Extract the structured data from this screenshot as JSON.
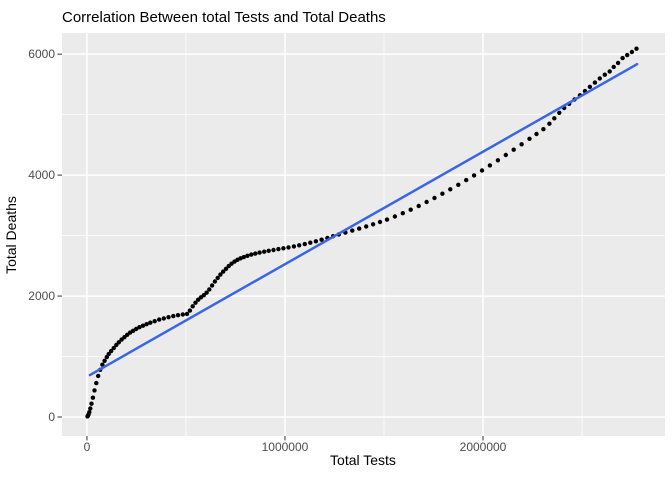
{
  "title": "Correlation Between total Tests and Total Deaths",
  "chart_data": {
    "type": "scatter",
    "title": "Correlation Between total Tests and Total Deaths",
    "xlabel": "Total Tests",
    "ylabel": "Total Deaths",
    "legend": "none",
    "grid": "on",
    "xlim": [
      -126000,
      2919000
    ],
    "ylim": [
      -314,
      6350
    ],
    "x_ticks": [
      0,
      1000000,
      2000000
    ],
    "x_tick_labels": [
      "0",
      "1000000",
      "2000000"
    ],
    "x_minor_ticks": [
      500000,
      1500000,
      2500000
    ],
    "y_ticks": [
      0,
      2000,
      4000,
      6000
    ],
    "y_tick_labels": [
      "0",
      "2000",
      "4000",
      "6000"
    ],
    "y_minor_ticks": [
      1000,
      3000,
      5000
    ],
    "colors": {
      "panel": "#EBEBEB",
      "grid": "#FFFFFF",
      "point": "#000000",
      "trend": "#3A66E5",
      "tick_label": "#4D4D4D",
      "tick_mark": "#333333",
      "text": "#000000",
      "background": "#FFFFFF"
    },
    "trend_line": {
      "type": "linear",
      "x1": 15000,
      "y1": 694,
      "x2": 2778000,
      "y2": 5835
    },
    "points": [
      [
        3000,
        10
      ],
      [
        5000,
        20
      ],
      [
        8000,
        40
      ],
      [
        12000,
        80
      ],
      [
        17000,
        140
      ],
      [
        23000,
        220
      ],
      [
        30000,
        320
      ],
      [
        38000,
        440
      ],
      [
        47000,
        560
      ],
      [
        57000,
        680
      ],
      [
        67000,
        780
      ],
      [
        78000,
        865
      ],
      [
        89000,
        930
      ],
      [
        100000,
        990
      ],
      [
        110000,
        1040
      ],
      [
        122000,
        1090
      ],
      [
        135000,
        1140
      ],
      [
        148000,
        1190
      ],
      [
        161000,
        1235
      ],
      [
        175000,
        1280
      ],
      [
        189000,
        1320
      ],
      [
        203000,
        1360
      ],
      [
        218000,
        1395
      ],
      [
        233000,
        1425
      ],
      [
        248000,
        1455
      ],
      [
        265000,
        1485
      ],
      [
        283000,
        1510
      ],
      [
        301000,
        1535
      ],
      [
        320000,
        1560
      ],
      [
        342000,
        1585
      ],
      [
        365000,
        1610
      ],
      [
        388000,
        1630
      ],
      [
        412000,
        1650
      ],
      [
        436000,
        1668
      ],
      [
        460000,
        1683
      ],
      [
        484000,
        1695
      ],
      [
        505000,
        1705
      ],
      [
        520000,
        1760
      ],
      [
        534000,
        1830
      ],
      [
        548000,
        1890
      ],
      [
        562000,
        1940
      ],
      [
        576000,
        1980
      ],
      [
        590000,
        2015
      ],
      [
        604000,
        2055
      ],
      [
        618000,
        2110
      ],
      [
        632000,
        2175
      ],
      [
        646000,
        2240
      ],
      [
        660000,
        2300
      ],
      [
        674000,
        2355
      ],
      [
        688000,
        2405
      ],
      [
        702000,
        2450
      ],
      [
        716000,
        2495
      ],
      [
        730000,
        2535
      ],
      [
        745000,
        2570
      ],
      [
        760000,
        2600
      ],
      [
        776000,
        2625
      ],
      [
        792000,
        2645
      ],
      [
        810000,
        2665
      ],
      [
        830000,
        2685
      ],
      [
        850000,
        2702
      ],
      [
        872000,
        2718
      ],
      [
        895000,
        2733
      ],
      [
        918000,
        2748
      ],
      [
        942000,
        2762
      ],
      [
        967000,
        2776
      ],
      [
        992000,
        2790
      ],
      [
        1018000,
        2805
      ],
      [
        1045000,
        2822
      ],
      [
        1072000,
        2840
      ],
      [
        1100000,
        2860
      ],
      [
        1128000,
        2882
      ],
      [
        1156000,
        2906
      ],
      [
        1185000,
        2932
      ],
      [
        1214000,
        2960
      ],
      [
        1243000,
        2990
      ],
      [
        1272000,
        3020
      ],
      [
        1305000,
        3050
      ],
      [
        1340000,
        3082
      ],
      [
        1375000,
        3115
      ],
      [
        1410000,
        3150
      ],
      [
        1445000,
        3186
      ],
      [
        1480000,
        3224
      ],
      [
        1515000,
        3264
      ],
      [
        1555000,
        3315
      ],
      [
        1595000,
        3370
      ],
      [
        1635000,
        3428
      ],
      [
        1675000,
        3490
      ],
      [
        1715000,
        3555
      ],
      [
        1755000,
        3622
      ],
      [
        1795000,
        3692
      ],
      [
        1835000,
        3765
      ],
      [
        1875000,
        3840
      ],
      [
        1915000,
        3917
      ],
      [
        1955000,
        3996
      ],
      [
        1995000,
        4077
      ],
      [
        2035000,
        4160
      ],
      [
        2075000,
        4245
      ],
      [
        2115000,
        4332
      ],
      [
        2155000,
        4420
      ],
      [
        2195000,
        4510
      ],
      [
        2235000,
        4600
      ],
      [
        2270000,
        4680
      ],
      [
        2305000,
        4760
      ],
      [
        2335000,
        4850
      ],
      [
        2360000,
        4940
      ],
      [
        2385000,
        5030
      ],
      [
        2410000,
        5110
      ],
      [
        2435000,
        5180
      ],
      [
        2462000,
        5250
      ],
      [
        2490000,
        5320
      ],
      [
        2515000,
        5390
      ],
      [
        2540000,
        5460
      ],
      [
        2565000,
        5530
      ],
      [
        2590000,
        5600
      ],
      [
        2615000,
        5660
      ],
      [
        2640000,
        5715
      ],
      [
        2660000,
        5790
      ],
      [
        2682000,
        5855
      ],
      [
        2705000,
        5935
      ],
      [
        2728000,
        5985
      ],
      [
        2752000,
        6035
      ],
      [
        2775000,
        6090
      ]
    ]
  }
}
